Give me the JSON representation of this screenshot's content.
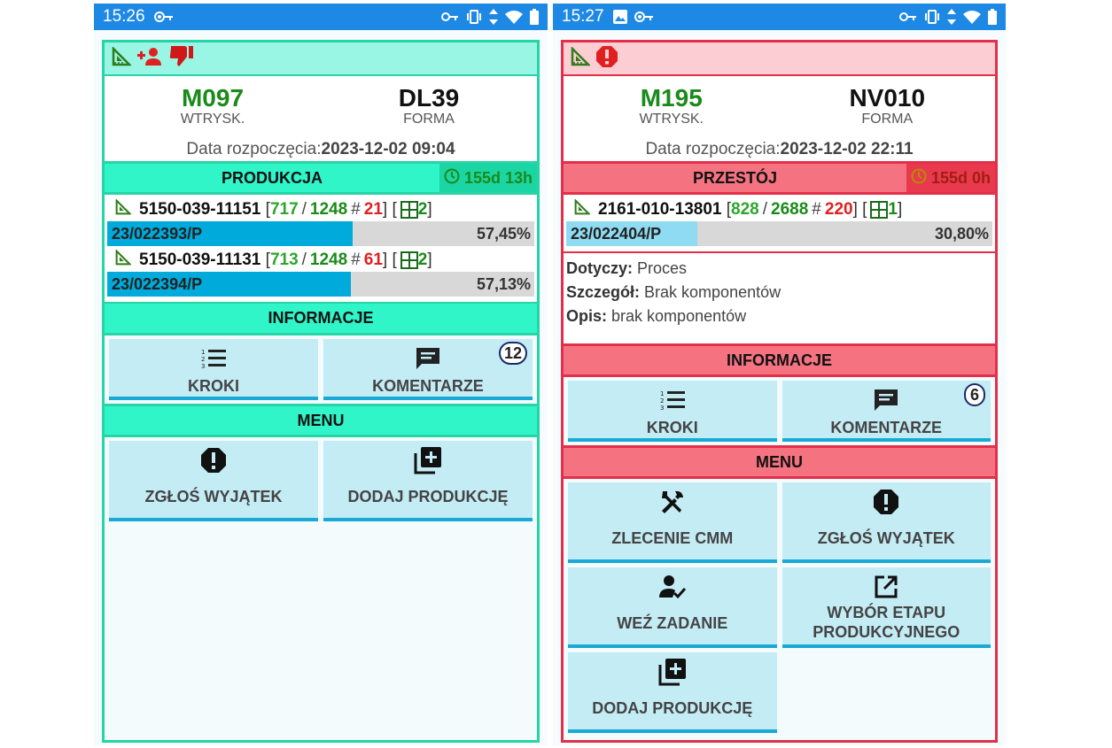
{
  "left": {
    "status": {
      "time": "15:26"
    },
    "machine": {
      "value": "M097",
      "label": "WTRYSK."
    },
    "mold": {
      "value": "DL39",
      "label": "FORMA"
    },
    "start": {
      "label": "Data rozpoczęcia:",
      "value": "2023-12-02 09:04"
    },
    "state": {
      "label": "PRODUKCJA",
      "duration": "155d 13h"
    },
    "products": [
      {
        "code": "5150-039-11151",
        "done": "717",
        "total": "1248",
        "hash": "#",
        "rejects": "21",
        "cavities": "2",
        "order": "23/022393/P",
        "percent_label": "57,45%",
        "percent": 57.45
      },
      {
        "code": "5150-039-11131",
        "done": "713",
        "total": "1248",
        "hash": "#",
        "rejects": "61",
        "cavities": "2",
        "order": "23/022394/P",
        "percent_label": "57,13%",
        "percent": 57.13
      }
    ],
    "info_header": "INFORMACJE",
    "info_tiles": {
      "steps": "KROKI",
      "comments": "KOMENTARZE",
      "comments_count": "12"
    },
    "menu_header": "MENU",
    "menu_tiles": {
      "exception": "ZGŁOŚ WYJĄTEK",
      "add_production": "DODAJ PRODUKCJĘ"
    }
  },
  "right": {
    "status": {
      "time": "15:27"
    },
    "machine": {
      "value": "M195",
      "label": "WTRYSK."
    },
    "mold": {
      "value": "NV010",
      "label": "FORMA"
    },
    "start": {
      "label": "Data rozpoczęcia:",
      "value": "2023-12-02 22:11"
    },
    "state": {
      "label": "PRZESTÓJ",
      "duration": "155d 0h"
    },
    "products": [
      {
        "code": "2161-010-13801",
        "done": "828",
        "total": "2688",
        "hash": "#",
        "rejects": "220",
        "cavities": "1",
        "order": "23/022404/P",
        "percent_label": "30,80%",
        "percent": 30.8
      }
    ],
    "details": {
      "concerns_label": "Dotyczy:",
      "concerns": "Proces",
      "detail_label": "Szczegół:",
      "detail": "Brak komponentów",
      "desc_label": "Opis:",
      "desc": "brak komponentów"
    },
    "info_header": "INFORMACJE",
    "info_tiles": {
      "steps": "KROKI",
      "comments": "KOMENTARZE",
      "comments_count": "6"
    },
    "menu_header": "MENU",
    "menu_tiles": {
      "cmm": "ZLECENIE CMM",
      "exception": "ZGŁOŚ WYJĄTEK",
      "take_task": "WEŹ ZADANIE",
      "stage_line1": "WYBÓR ETAPU",
      "stage_line2": "PRODUKCYJNEGO",
      "add_production": "DODAJ PRODUKCJĘ"
    }
  },
  "colors": {
    "production_band": "#2ff5c8",
    "downtime_band": "#f57381",
    "progress_fill": "#00aadb",
    "tile_bg": "#c4ecf5",
    "status_bar": "#1e88e5"
  },
  "icons": {
    "status": [
      "vpn-key-icon",
      "vibrate-icon",
      "data-arrows-icon",
      "wifi-icon",
      "battery-icon"
    ],
    "flags_left": [
      "triangle-ruler-icon",
      "add-person-icon",
      "thumb-down-icon"
    ],
    "flags_right": [
      "triangle-ruler-icon",
      "alert-circle-icon"
    ]
  }
}
